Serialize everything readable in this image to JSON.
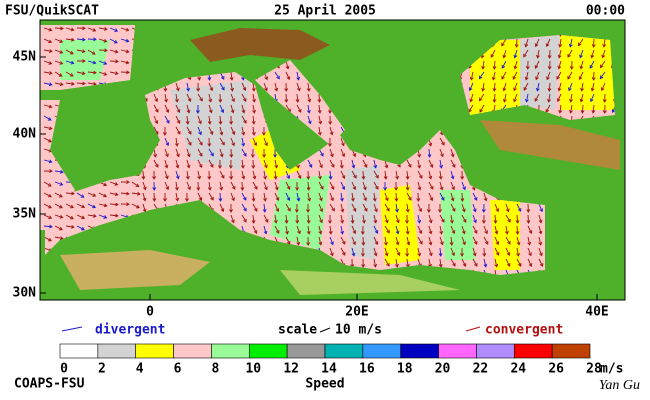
{
  "header": {
    "source": "FSU/QuikSCAT",
    "date": "25 April 2005",
    "time": "00:00"
  },
  "map": {
    "lat_labels": [
      "45N",
      "40N",
      "35N",
      "30N"
    ],
    "lon_labels": [
      "0",
      "20E",
      "40E"
    ]
  },
  "legend": {
    "divergent": "divergent",
    "scale": "scale",
    "scale_value": "10 m/s",
    "convergent": "convergent"
  },
  "colorbar": {
    "ticks": [
      0,
      2,
      4,
      6,
      8,
      10,
      12,
      14,
      16,
      18,
      20,
      22,
      24,
      26,
      28
    ],
    "unit": "m/s",
    "title": "Speed",
    "colors": [
      "#ffffff",
      "#d3d3d3",
      "#ffff00",
      "#ffc8c8",
      "#98fb98",
      "#00ee00",
      "#999999",
      "#00b2b2",
      "#3399ff",
      "#0000c0",
      "#ff66ff",
      "#b08cff",
      "#ff0000",
      "#c04000",
      "#000000"
    ]
  },
  "footer": {
    "credit": "COAPS-FSU",
    "author": "Yan Gu"
  }
}
